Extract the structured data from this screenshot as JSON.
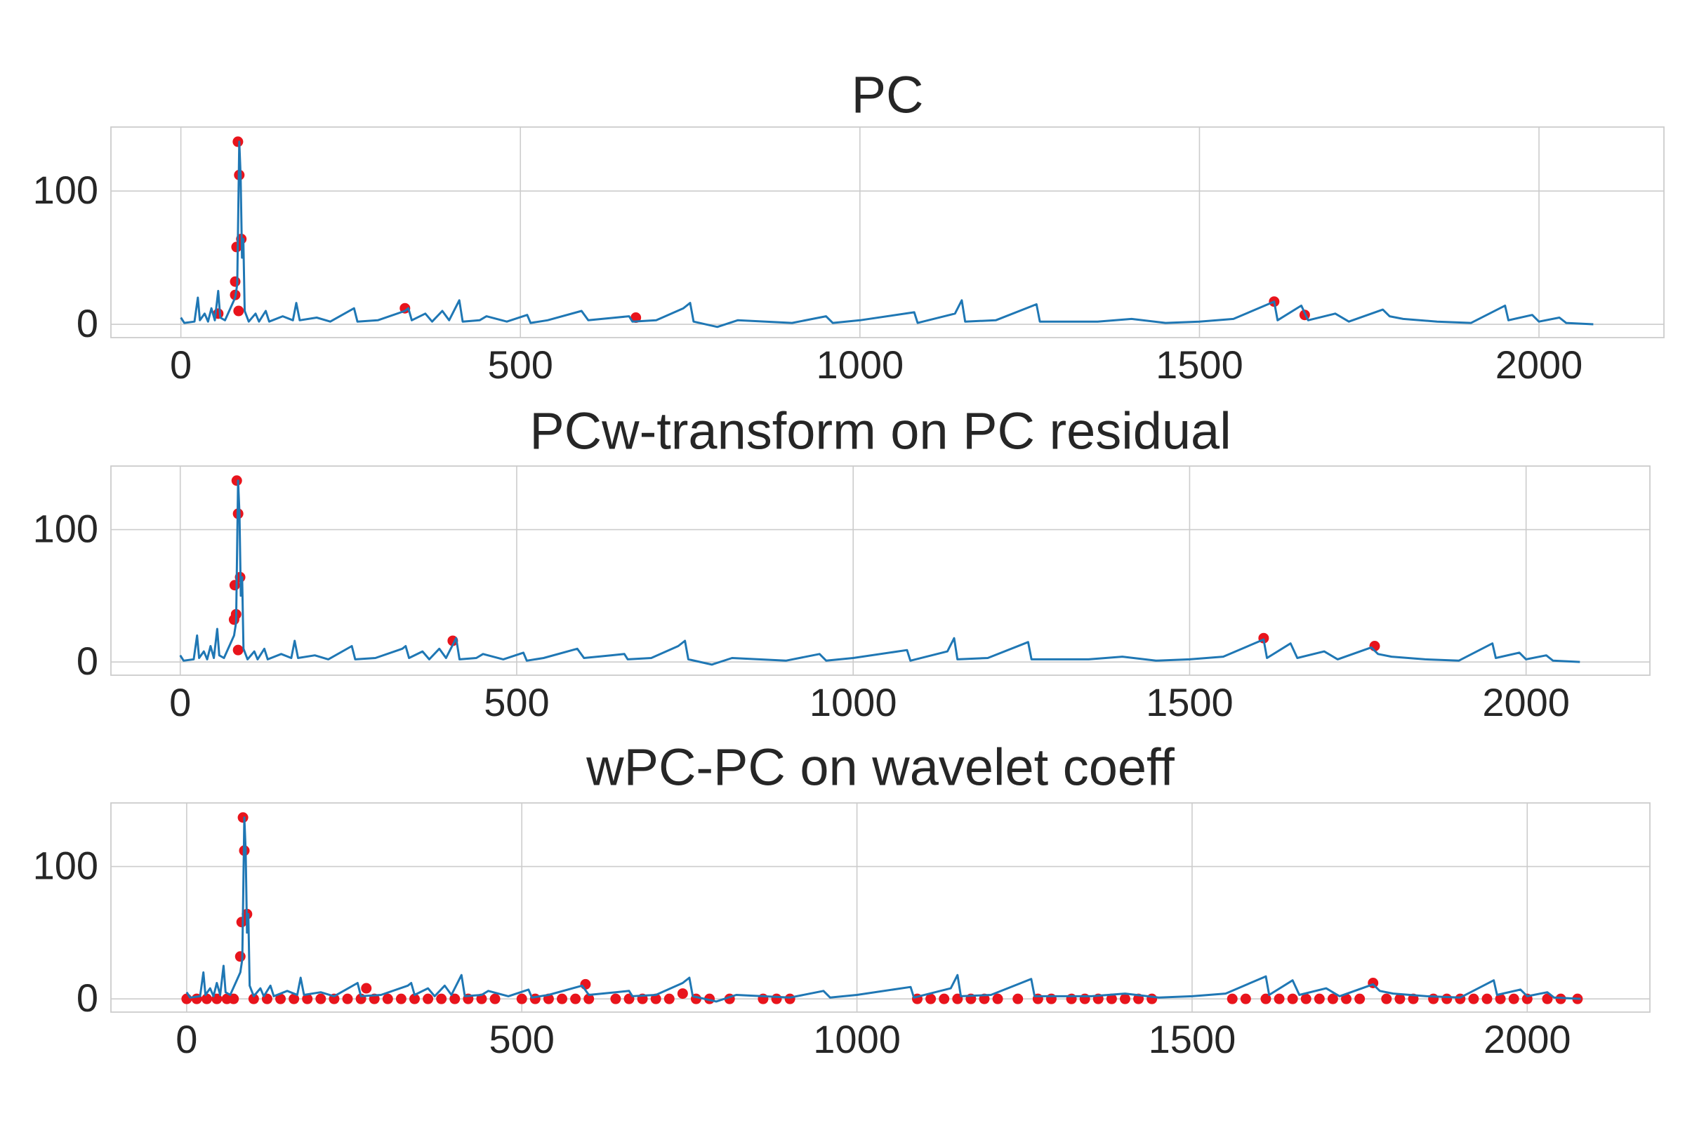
{
  "chart_data": [
    {
      "type": "line",
      "title": "PC",
      "xlim": [
        -103,
        2184
      ],
      "ylim": [
        -10,
        148
      ],
      "xticks": [
        0,
        500,
        1000,
        1500,
        2000
      ],
      "yticks": [
        0,
        100
      ],
      "grid": true,
      "series": [
        {
          "type": "line",
          "color": "#1f77b4",
          "x": [
            0,
            5,
            20,
            25,
            28,
            35,
            40,
            45,
            50,
            55,
            58,
            65,
            80,
            83,
            86,
            88,
            90,
            92,
            94,
            100,
            110,
            115,
            125,
            130,
            150,
            165,
            170,
            175,
            200,
            220,
            255,
            260,
            290,
            330,
            335,
            340,
            360,
            370,
            385,
            395,
            410,
            415,
            440,
            450,
            480,
            510,
            515,
            540,
            590,
            600,
            640,
            660,
            665,
            700,
            740,
            750,
            755,
            790,
            820,
            900,
            950,
            960,
            1000,
            1080,
            1085,
            1140,
            1150,
            1155,
            1200,
            1260,
            1265,
            1300,
            1350,
            1400,
            1450,
            1500,
            1550,
            1610,
            1615,
            1650,
            1660,
            1700,
            1720,
            1770,
            1780,
            1800,
            1850,
            1900,
            1950,
            1955,
            1990,
            2000,
            2030,
            2040,
            2080
          ],
          "values": [
            5,
            1,
            2,
            20,
            3,
            8,
            2,
            12,
            3,
            25,
            5,
            3,
            20,
            30,
            137,
            112,
            50,
            64,
            10,
            2,
            8,
            2,
            10,
            2,
            6,
            3,
            16,
            3,
            5,
            2,
            12,
            2,
            3,
            10,
            12,
            3,
            8,
            2,
            10,
            3,
            18,
            2,
            3,
            6,
            2,
            7,
            1,
            3,
            10,
            3,
            5,
            6,
            2,
            3,
            12,
            16,
            2,
            -2,
            3,
            1,
            6,
            1,
            3,
            9,
            1,
            8,
            18,
            2,
            3,
            15,
            2,
            2,
            2,
            4,
            1,
            2,
            4,
            17,
            3,
            14,
            3,
            8,
            2,
            11,
            6,
            4,
            2,
            1,
            14,
            3,
            7,
            2,
            5,
            1,
            0
          ]
        },
        {
          "type": "scatter",
          "color": "#e8141c",
          "x": [
            84,
            86,
            89,
            82,
            80,
            80,
            85,
            55,
            330,
            670,
            1610,
            1655
          ],
          "values": [
            137,
            112,
            64,
            58,
            32,
            22,
            10,
            8,
            12,
            5,
            17,
            7
          ]
        }
      ]
    },
    {
      "type": "line",
      "title": "PCw-transform on PC residual",
      "xlim": [
        -103,
        2184
      ],
      "ylim": [
        -10,
        148
      ],
      "xticks": [
        0,
        500,
        1000,
        1500,
        2000
      ],
      "yticks": [
        0,
        100
      ],
      "grid": true,
      "series": [
        {
          "type": "line",
          "color": "#1f77b4",
          "x": [
            0,
            5,
            20,
            25,
            28,
            35,
            40,
            45,
            50,
            55,
            58,
            65,
            80,
            83,
            86,
            88,
            90,
            92,
            94,
            100,
            110,
            115,
            125,
            130,
            150,
            165,
            170,
            175,
            200,
            220,
            255,
            260,
            290,
            330,
            335,
            340,
            360,
            370,
            385,
            395,
            410,
            415,
            440,
            450,
            480,
            510,
            515,
            540,
            590,
            600,
            640,
            660,
            665,
            700,
            740,
            750,
            755,
            790,
            820,
            900,
            950,
            960,
            1000,
            1080,
            1085,
            1140,
            1150,
            1155,
            1200,
            1260,
            1265,
            1300,
            1350,
            1400,
            1450,
            1500,
            1550,
            1610,
            1615,
            1650,
            1660,
            1700,
            1720,
            1770,
            1780,
            1800,
            1850,
            1900,
            1950,
            1955,
            1990,
            2000,
            2030,
            2040,
            2080
          ],
          "values": [
            5,
            1,
            2,
            20,
            3,
            8,
            2,
            12,
            3,
            25,
            5,
            3,
            20,
            30,
            137,
            112,
            50,
            64,
            10,
            2,
            8,
            2,
            10,
            2,
            6,
            3,
            16,
            3,
            5,
            2,
            12,
            2,
            3,
            10,
            12,
            3,
            8,
            2,
            10,
            3,
            18,
            2,
            3,
            6,
            2,
            7,
            1,
            3,
            10,
            3,
            5,
            6,
            2,
            3,
            12,
            16,
            2,
            -2,
            3,
            1,
            6,
            1,
            3,
            9,
            1,
            8,
            18,
            2,
            3,
            15,
            2,
            2,
            2,
            4,
            1,
            2,
            4,
            17,
            3,
            14,
            3,
            8,
            2,
            11,
            6,
            4,
            2,
            1,
            14,
            3,
            7,
            2,
            5,
            1,
            0
          ]
        },
        {
          "type": "scatter",
          "color": "#e8141c",
          "x": [
            84,
            86,
            89,
            81,
            80,
            83,
            86,
            405,
            1610,
            1775
          ],
          "values": [
            137,
            112,
            64,
            58,
            32,
            36,
            9,
            16,
            18,
            12
          ]
        }
      ]
    },
    {
      "type": "line",
      "title": "wPC-PC on wavelet coeff",
      "xlim": [
        -113,
        2183
      ],
      "ylim": [
        -10,
        148
      ],
      "xticks": [
        0,
        500,
        1000,
        1500,
        2000
      ],
      "yticks": [
        0,
        100
      ],
      "grid": true,
      "series": [
        {
          "type": "line",
          "color": "#1f77b4",
          "x": [
            0,
            5,
            20,
            25,
            28,
            35,
            40,
            45,
            50,
            55,
            58,
            65,
            80,
            83,
            86,
            88,
            90,
            92,
            94,
            100,
            110,
            115,
            125,
            130,
            150,
            165,
            170,
            175,
            200,
            220,
            255,
            260,
            290,
            330,
            335,
            340,
            360,
            370,
            385,
            395,
            410,
            415,
            440,
            450,
            480,
            510,
            515,
            540,
            590,
            600,
            640,
            660,
            665,
            700,
            740,
            750,
            755,
            790,
            820,
            900,
            950,
            960,
            1000,
            1080,
            1085,
            1140,
            1150,
            1155,
            1200,
            1260,
            1265,
            1300,
            1350,
            1400,
            1450,
            1500,
            1550,
            1610,
            1615,
            1650,
            1660,
            1700,
            1720,
            1770,
            1780,
            1800,
            1850,
            1900,
            1950,
            1955,
            1990,
            2000,
            2030,
            2040,
            2080
          ],
          "values": [
            5,
            1,
            2,
            20,
            3,
            8,
            2,
            12,
            3,
            25,
            5,
            3,
            20,
            30,
            137,
            112,
            50,
            64,
            10,
            2,
            8,
            2,
            10,
            2,
            6,
            3,
            16,
            3,
            5,
            2,
            12,
            2,
            3,
            10,
            12,
            3,
            8,
            2,
            10,
            3,
            18,
            2,
            3,
            6,
            2,
            7,
            1,
            3,
            10,
            3,
            5,
            6,
            2,
            3,
            12,
            16,
            2,
            -2,
            3,
            1,
            6,
            1,
            3,
            9,
            1,
            8,
            18,
            2,
            3,
            15,
            2,
            2,
            2,
            4,
            1,
            2,
            4,
            17,
            3,
            14,
            3,
            8,
            2,
            11,
            6,
            4,
            2,
            1,
            14,
            3,
            7,
            2,
            5,
            1,
            0
          ]
        },
        {
          "type": "scatter",
          "color": "#e8141c",
          "x": [
            84,
            86,
            90,
            82,
            80,
            268,
            595,
            740,
            1770,
            0,
            15,
            30,
            45,
            60,
            70,
            100,
            120,
            140,
            160,
            180,
            200,
            220,
            240,
            260,
            280,
            300,
            320,
            340,
            360,
            380,
            400,
            420,
            440,
            460,
            500,
            520,
            540,
            560,
            580,
            600,
            640,
            660,
            680,
            700,
            720,
            760,
            780,
            810,
            860,
            880,
            900,
            1090,
            1110,
            1130,
            1150,
            1170,
            1190,
            1210,
            1240,
            1270,
            1290,
            1320,
            1340,
            1360,
            1380,
            1400,
            1420,
            1440,
            1560,
            1580,
            1610,
            1630,
            1650,
            1670,
            1690,
            1710,
            1730,
            1750,
            1790,
            1810,
            1830,
            1860,
            1880,
            1900,
            1920,
            1940,
            1960,
            1980,
            2000,
            2030,
            2050,
            2075
          ],
          "values": [
            137,
            112,
            64,
            58,
            32,
            8,
            11,
            4,
            12,
            0,
            0,
            0,
            0,
            0,
            0,
            0,
            0,
            0,
            0,
            0,
            0,
            0,
            0,
            0,
            0,
            0,
            0,
            0,
            0,
            0,
            0,
            0,
            0,
            0,
            0,
            0,
            0,
            0,
            0,
            0,
            0,
            0,
            0,
            0,
            0,
            0,
            0,
            0,
            0,
            0,
            0,
            0,
            0,
            0,
            0,
            0,
            0,
            0,
            0,
            0,
            0,
            0,
            0,
            0,
            0,
            0,
            0,
            0,
            0,
            0,
            0,
            0,
            0,
            0,
            0,
            0,
            0,
            0,
            0,
            0,
            0,
            0,
            0,
            0,
            0,
            0,
            0,
            0,
            0,
            0,
            0,
            0
          ]
        }
      ]
    }
  ]
}
